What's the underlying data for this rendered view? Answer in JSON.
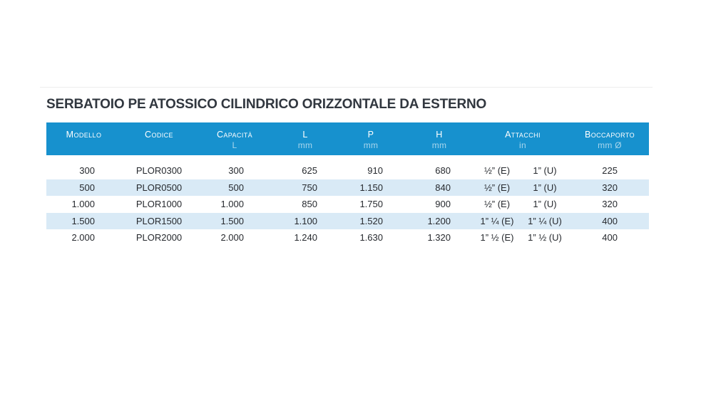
{
  "page": {
    "title": "SERBATOIO PE ATOSSICO CILINDRICO ORIZZONTALE DA ESTERNO"
  },
  "colors": {
    "header_bg": "#1791ce",
    "row_alt_bg": "#d9eaf6",
    "title_text": "#31373f",
    "header_text": "#ffffff",
    "header_subtext": "#c5e3f4",
    "cell_text": "#26292e"
  },
  "table": {
    "columns": [
      {
        "label": "Modello",
        "sub": ""
      },
      {
        "label": "Codice",
        "sub": ""
      },
      {
        "label": "Capacità",
        "sub": "L"
      },
      {
        "label": "L",
        "sub": "mm"
      },
      {
        "label": "P",
        "sub": "mm"
      },
      {
        "label": "H",
        "sub": "mm"
      },
      {
        "label": "Attacchi",
        "sub": "in",
        "span": 2
      },
      {
        "label": "Boccaporto",
        "sub": "mm Ø"
      }
    ],
    "rows": [
      [
        "300",
        "PLOR0300",
        "300",
        "625",
        "910",
        "680",
        "½” (E)",
        "1” (U)",
        "225"
      ],
      [
        "500",
        "PLOR0500",
        "500",
        "750",
        "1.150",
        "840",
        "½” (E)",
        "1” (U)",
        "320"
      ],
      [
        "1.000",
        "PLOR1000",
        "1.000",
        "850",
        "1.750",
        "900",
        "½” (E)",
        "1” (U)",
        "320"
      ],
      [
        "1.500",
        "PLOR1500",
        "1.500",
        "1.100",
        "1.520",
        "1.200",
        "1” ¼ (E)",
        "1” ¼ (U)",
        "400"
      ],
      [
        "2.000",
        "PLOR2000",
        "2.000",
        "1.240",
        "1.630",
        "1.320",
        "1” ½ (E)",
        "1” ½ (U)",
        "400"
      ]
    ]
  }
}
